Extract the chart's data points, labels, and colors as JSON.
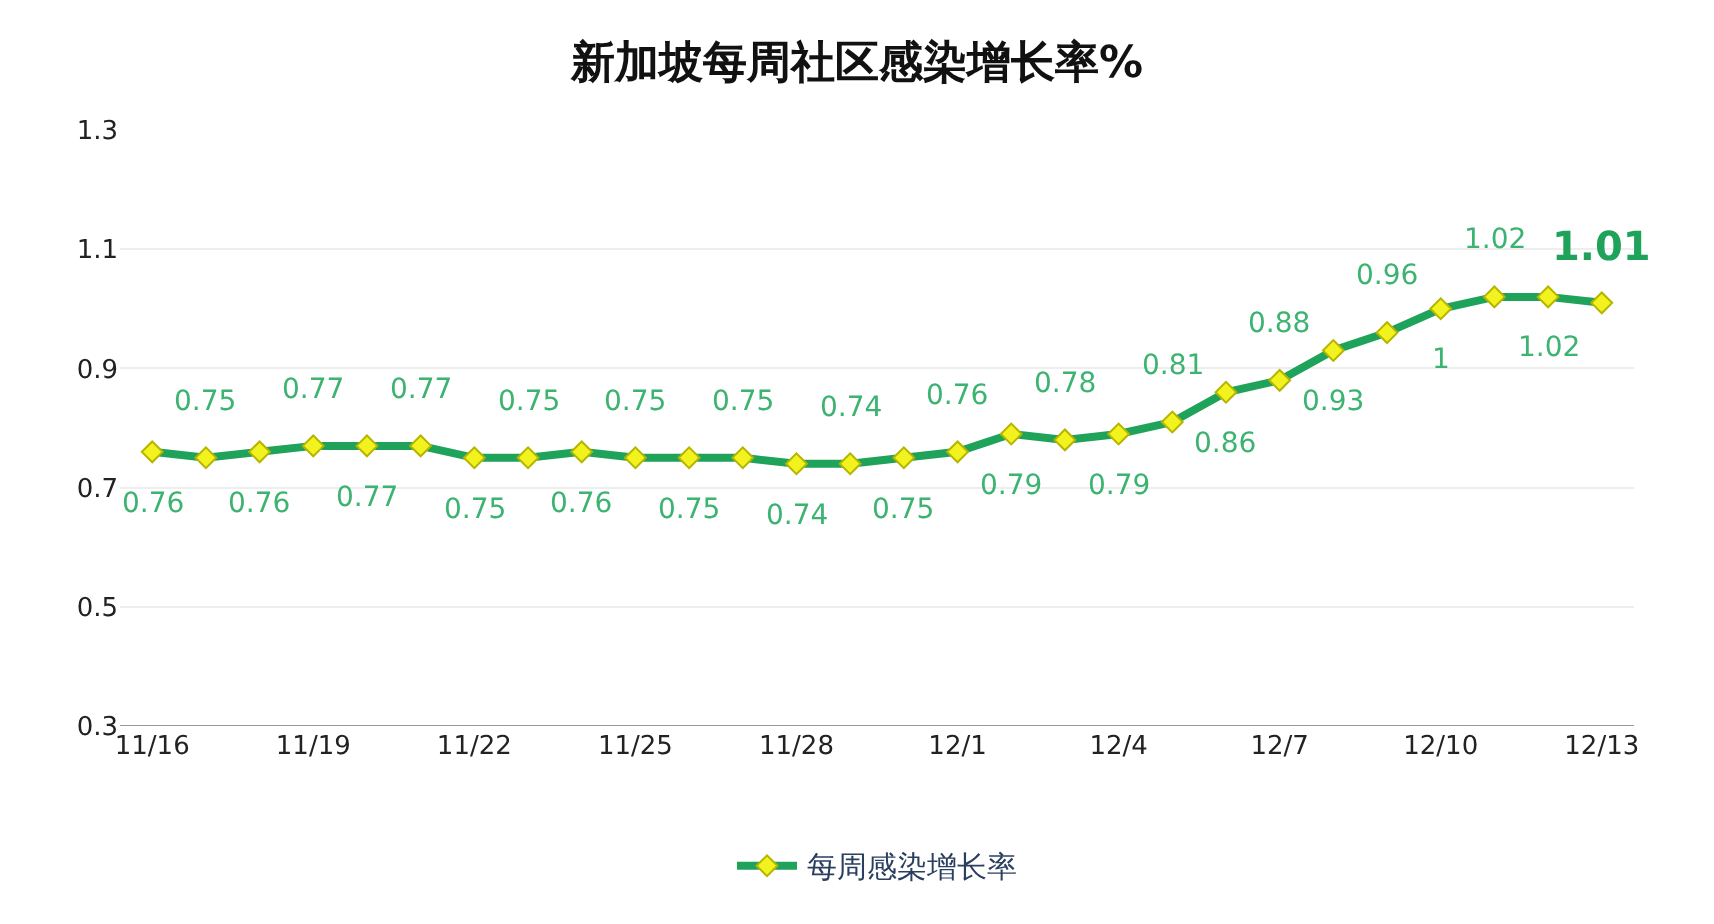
{
  "chart_data": {
    "type": "line",
    "title": "新加坡每周社区感染增长率%",
    "categories": [
      "11/16",
      null,
      null,
      "11/19",
      null,
      null,
      "11/22",
      null,
      null,
      "11/25",
      null,
      null,
      "11/28",
      null,
      null,
      "12/1",
      null,
      null,
      "12/4",
      null,
      null,
      "12/7",
      null,
      null,
      "12/10",
      null,
      null,
      "12/13"
    ],
    "series": [
      {
        "name": "每周感染增长率",
        "color": "#1fa35a",
        "values": [
          0.76,
          0.75,
          0.76,
          0.77,
          0.77,
          0.77,
          0.75,
          0.75,
          0.76,
          0.75,
          0.75,
          0.75,
          0.74,
          0.74,
          0.75,
          0.76,
          0.79,
          0.78,
          0.79,
          0.81,
          0.86,
          0.88,
          0.93,
          0.96,
          1,
          1.02,
          1.02,
          1.01
        ]
      }
    ],
    "ylim": [
      0.3,
      1.3
    ],
    "yticks": [
      0.3,
      0.5,
      0.7,
      0.9,
      1.1,
      1.3
    ],
    "grid": "y",
    "legend": "bottom",
    "marker": "diamond",
    "line_style": "solid",
    "data_labels": true
  }
}
